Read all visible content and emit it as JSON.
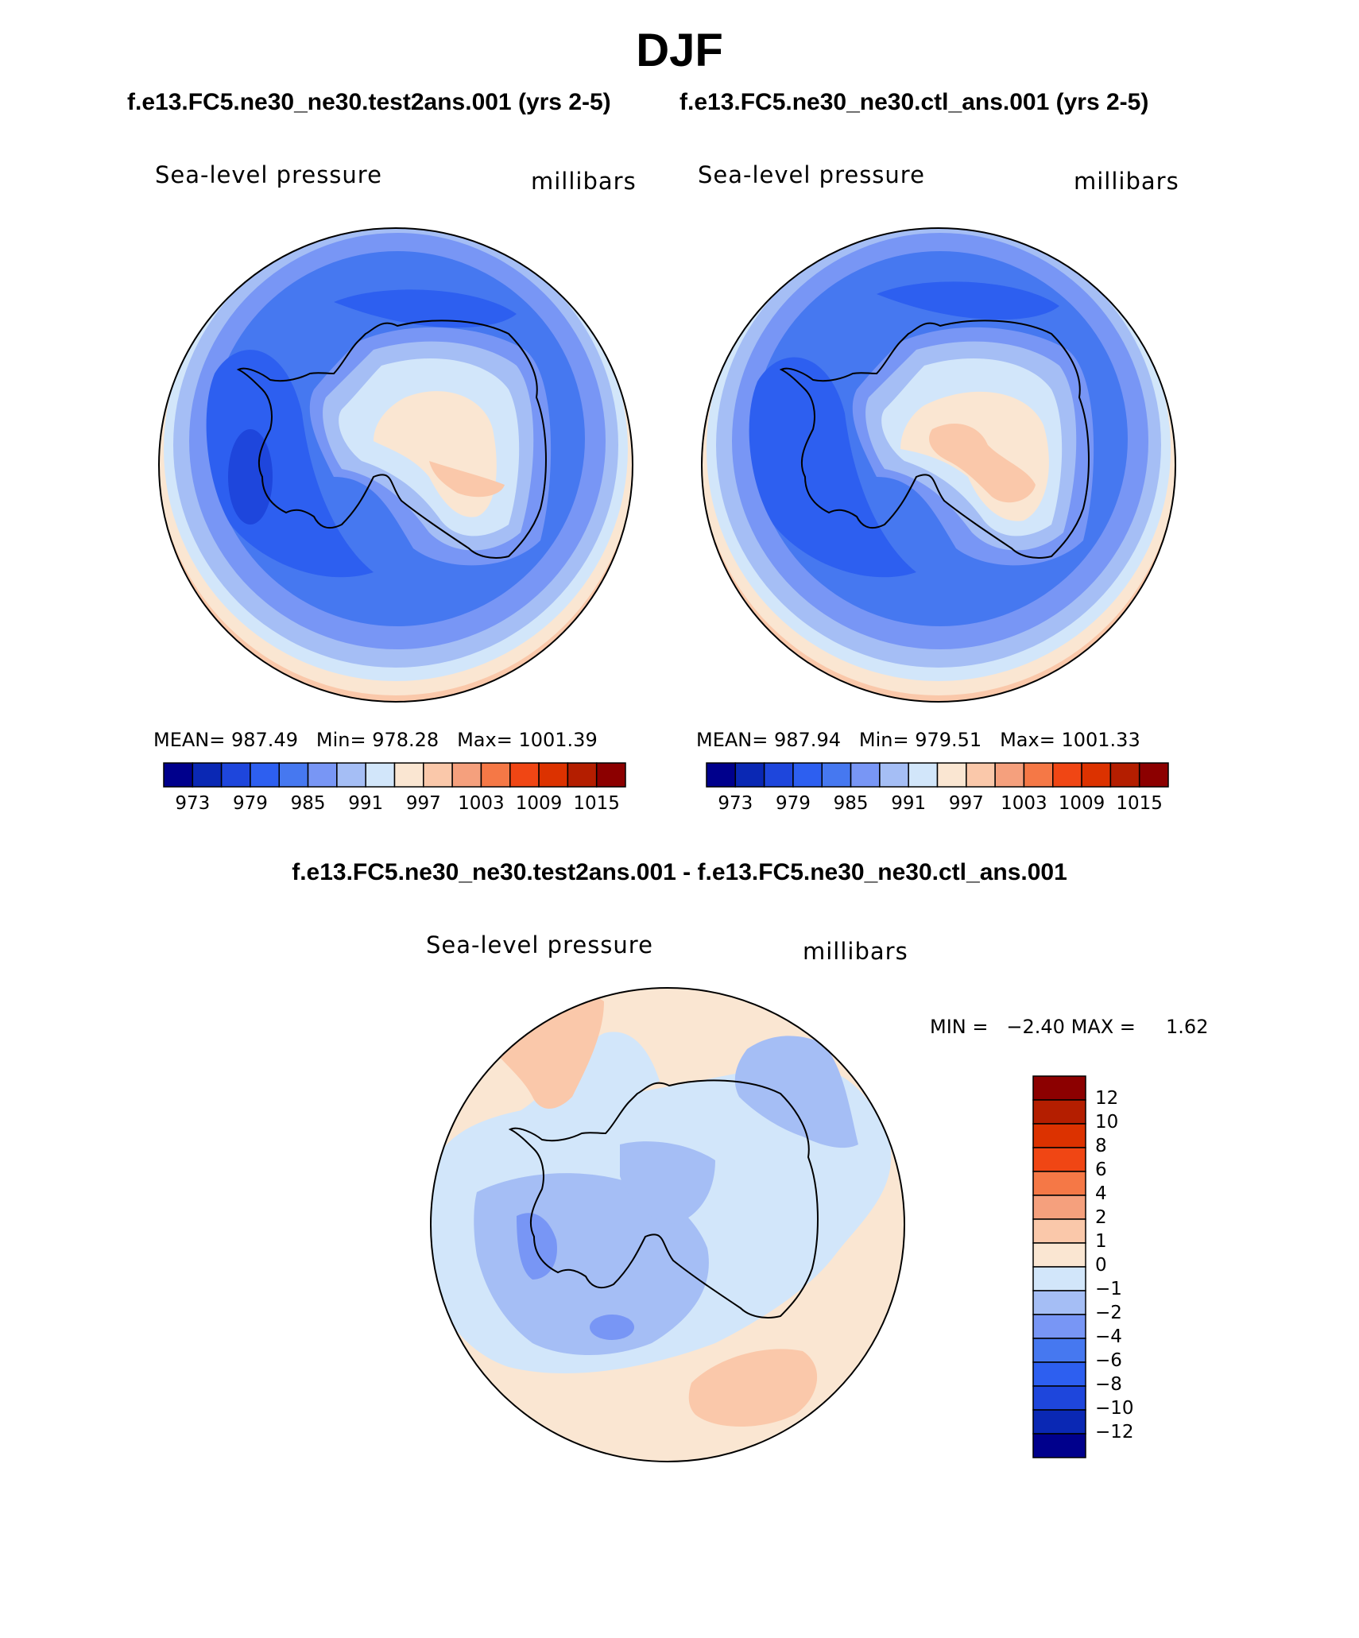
{
  "page": {
    "title": "DJF",
    "case_titles": {
      "test": "f.e13.FC5.ne30_ne30.test2ans.001 (yrs 2-5)",
      "control": "f.e13.FC5.ne30_ne30.ctl_ans.001 (yrs 2-5)",
      "difference": "f.e13.FC5.ne30_ne30.test2ans.001 - f.e13.FC5.ne30_ne30.ctl_ans.001"
    }
  },
  "chart_data": [
    {
      "type": "heatmap",
      "projection": "south-polar-stereographic",
      "panel": "test",
      "variable_label": "Sea-level pressure",
      "units_label": "millibars",
      "stats": {
        "mean_label": "MEAN=",
        "mean": "987.49",
        "min_label": "Min=",
        "min": "978.28",
        "max_label": "Max=",
        "max": "1001.39"
      },
      "colorbar": {
        "orientation": "horizontal",
        "levels": [
          973,
          976,
          979,
          982,
          985,
          988,
          991,
          994,
          997,
          1000,
          1003,
          1006,
          1009,
          1012,
          1015
        ],
        "tick_labels": [
          "973",
          "979",
          "985",
          "991",
          "997",
          "1003",
          "1009",
          "1015"
        ],
        "colors": [
          "#00008c",
          "#0a28b4",
          "#1e46dc",
          "#2d5ff0",
          "#4678f0",
          "#7896f5",
          "#a5bef5",
          "#d2e6fa",
          "#fae6d2",
          "#fac8aa",
          "#f5a07d",
          "#f57846",
          "#f04614",
          "#dc3200",
          "#b41e00",
          "#8c0000"
        ]
      }
    },
    {
      "type": "heatmap",
      "projection": "south-polar-stereographic",
      "panel": "control",
      "variable_label": "Sea-level pressure",
      "units_label": "millibars",
      "stats": {
        "mean_label": "MEAN=",
        "mean": "987.94",
        "min_label": "Min=",
        "min": "979.51",
        "max_label": "Max=",
        "max": "1001.33"
      },
      "colorbar": {
        "orientation": "horizontal",
        "levels": [
          973,
          976,
          979,
          982,
          985,
          988,
          991,
          994,
          997,
          1000,
          1003,
          1006,
          1009,
          1012,
          1015
        ],
        "tick_labels": [
          "973",
          "979",
          "985",
          "991",
          "997",
          "1003",
          "1009",
          "1015"
        ],
        "colors": [
          "#00008c",
          "#0a28b4",
          "#1e46dc",
          "#2d5ff0",
          "#4678f0",
          "#7896f5",
          "#a5bef5",
          "#d2e6fa",
          "#fae6d2",
          "#fac8aa",
          "#f5a07d",
          "#f57846",
          "#f04614",
          "#dc3200",
          "#b41e00",
          "#8c0000"
        ]
      }
    },
    {
      "type": "heatmap",
      "projection": "south-polar-stereographic",
      "panel": "difference",
      "variable_label": "Sea-level pressure",
      "units_label": "millibars",
      "stats": {
        "min_label": "MIN =",
        "min": "−2.40",
        "max_label": "MAX =",
        "max": "1.62"
      },
      "colorbar": {
        "orientation": "vertical",
        "tick_labels_top_to_bottom": [
          "12",
          "10",
          "8",
          "6",
          "4",
          "2",
          "1",
          "0",
          "−1",
          "−2",
          "−4",
          "−6",
          "−8",
          "−10",
          "−12"
        ],
        "colors_top_to_bottom": [
          "#8c0000",
          "#b41e00",
          "#dc3200",
          "#f04614",
          "#f57846",
          "#f5a07d",
          "#fac8aa",
          "#fae6d2",
          "#d2e6fa",
          "#a5bef5",
          "#7896f5",
          "#4678f0",
          "#2d5ff0",
          "#1e46dc",
          "#0a28b4",
          "#00008c"
        ]
      }
    }
  ]
}
